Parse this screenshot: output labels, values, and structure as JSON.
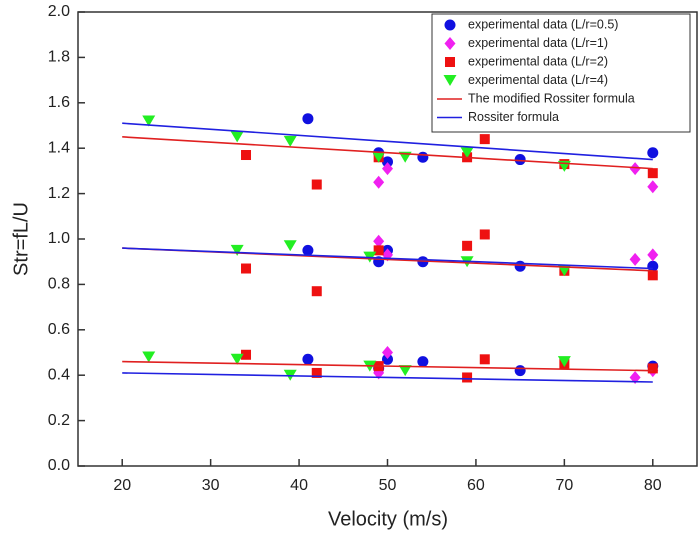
{
  "chart_data": {
    "type": "scatter",
    "xlabel": "Velocity (m/s)",
    "ylabel": "Str=fL/U",
    "xlim": [
      15,
      85
    ],
    "xticks": [
      20,
      30,
      40,
      50,
      60,
      70,
      80
    ],
    "ylim": [
      0,
      2
    ],
    "yticks": [
      {
        "value": 0,
        "label": "0.0"
      },
      0.2,
      0.4,
      0.6,
      0.8,
      {
        "value": 1,
        "label": "1.0"
      },
      1.2,
      1.4,
      1.6,
      1.8,
      {
        "value": 2,
        "label": "2.0"
      }
    ],
    "legend": "upper right",
    "series": [
      {
        "name": "experimental data (L/r=0.5)",
        "color": "#1010e0",
        "marker": "circle",
        "x": [
          41,
          49,
          50,
          54,
          65,
          80,
          41,
          49,
          50,
          54,
          65,
          80,
          41,
          49,
          50,
          54,
          65,
          80
        ],
        "values": [
          1.53,
          1.38,
          1.34,
          1.36,
          1.35,
          1.38,
          0.95,
          0.9,
          0.95,
          0.9,
          0.88,
          0.88,
          0.47,
          0.43,
          0.47,
          0.46,
          0.42,
          0.44
        ]
      },
      {
        "name": "experimental data (L/r=1)",
        "color": "#f020f0",
        "marker": "diamond",
        "x": [
          49,
          50,
          78,
          80,
          49,
          50,
          78,
          80,
          49,
          50,
          78,
          80
        ],
        "values": [
          1.25,
          1.31,
          1.31,
          1.23,
          0.99,
          0.93,
          0.91,
          0.93,
          0.41,
          0.5,
          0.39,
          0.42
        ]
      },
      {
        "name": "experimental data (L/r=2)",
        "color": "#ee1111",
        "marker": "square",
        "x": [
          34,
          42,
          49,
          59,
          61,
          70,
          80,
          34,
          42,
          49,
          59,
          61,
          70,
          80,
          34,
          42,
          49,
          59,
          61,
          70,
          80
        ],
        "values": [
          1.37,
          1.24,
          1.36,
          1.36,
          1.44,
          1.33,
          1.29,
          0.87,
          0.77,
          0.95,
          0.97,
          1.02,
          0.86,
          0.84,
          0.49,
          0.41,
          0.44,
          0.39,
          0.47,
          0.45,
          0.43
        ]
      },
      {
        "name": "experimental data (L/r=4)",
        "color": "#22ee22",
        "marker": "triangle-down",
        "x": [
          23,
          33,
          39,
          49,
          52,
          59,
          70,
          33,
          39,
          48,
          59,
          70,
          23,
          33,
          39,
          48,
          52,
          70
        ],
        "values": [
          1.52,
          1.45,
          1.43,
          1.36,
          1.36,
          1.38,
          1.32,
          0.95,
          0.97,
          0.92,
          0.9,
          0.86,
          0.48,
          0.47,
          0.4,
          0.44,
          0.42,
          0.46
        ]
      },
      {
        "name": "The modified Rossiter formula",
        "color": "#e02020",
        "marker": "line",
        "x": [
          20,
          80,
          null,
          20,
          80,
          null,
          20,
          80
        ],
        "values": [
          1.45,
          1.31,
          null,
          0.96,
          0.86,
          null,
          0.46,
          0.42
        ]
      },
      {
        "name": "Rossiter formula",
        "color": "#2020e0",
        "marker": "line",
        "x": [
          20,
          80,
          null,
          20,
          80,
          null,
          20,
          80
        ],
        "values": [
          1.51,
          1.35,
          null,
          0.96,
          0.87,
          null,
          0.41,
          0.37
        ]
      }
    ]
  }
}
